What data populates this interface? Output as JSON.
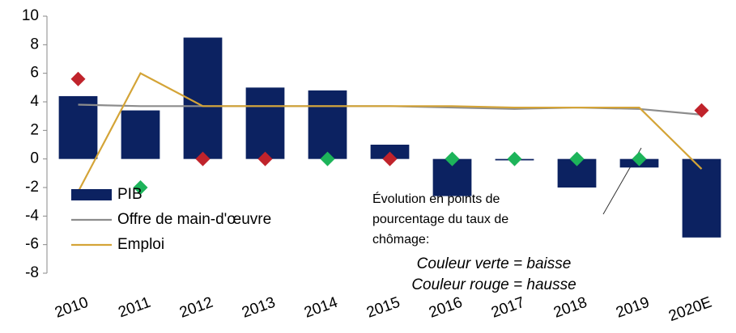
{
  "chart_data": {
    "type": "bar",
    "categories": [
      "2010",
      "2011",
      "2012",
      "2013",
      "2014",
      "2015",
      "2016",
      "2017",
      "2018",
      "2019",
      "2020E"
    ],
    "series": [
      {
        "name": "PIB",
        "kind": "bar",
        "color": "#0c2261",
        "values": [
          4.4,
          3.4,
          8.5,
          5.0,
          4.8,
          1.0,
          -2.6,
          -0.1,
          -2.0,
          -0.6,
          -5.5
        ]
      },
      {
        "name": "Offre de main-d'œuvre",
        "kind": "line",
        "color": "#8c8c8c",
        "values": [
          3.8,
          3.7,
          3.7,
          3.7,
          3.7,
          3.7,
          3.6,
          3.5,
          3.6,
          3.5,
          3.1
        ]
      },
      {
        "name": "Emploi",
        "kind": "line",
        "color": "#d4a437",
        "values": [
          -2.3,
          6.0,
          3.7,
          3.7,
          3.7,
          3.7,
          3.7,
          3.6,
          3.6,
          3.6,
          -0.7
        ]
      }
    ],
    "markers": {
      "values": [
        5.6,
        -2.0,
        0,
        0,
        0,
        0,
        0,
        0,
        0,
        0,
        3.4
      ],
      "colors": [
        "#c0232b",
        "#1db45a",
        "#c0232b",
        "#c0232b",
        "#1db45a",
        "#c0232b",
        "#1db45a",
        "#1db45a",
        "#1db45a",
        "#1db45a",
        "#c0232b"
      ]
    },
    "ylim": [
      -8,
      10
    ],
    "yticks": [
      -8,
      -6,
      -4,
      -2,
      0,
      2,
      4,
      6,
      8,
      10
    ],
    "annotation": [
      "Évolution en points de",
      "pourcentage du taux de",
      "chômage:"
    ],
    "annotation_key": [
      "Couleur verte = baisse",
      "Couleur rouge = hausse"
    ]
  }
}
